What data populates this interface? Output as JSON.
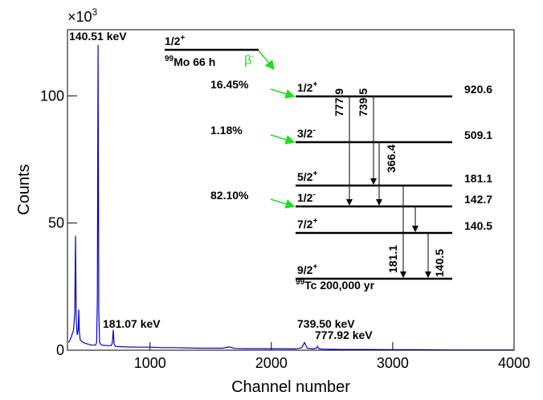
{
  "chart_data": {
    "type": "line",
    "xlabel": "Channel number",
    "ylabel": "Counts",
    "y_multiplier": {
      "base": "×10",
      "exponent": "3"
    },
    "color": "#0000cc",
    "xlim": [
      320,
      4000
    ],
    "ylim": [
      0,
      126
    ],
    "xticks": [
      1000,
      2000,
      3000,
      4000
    ],
    "yticks": [
      0,
      50,
      100
    ],
    "x": [
      330,
      350,
      370,
      380,
      386,
      392,
      400,
      408,
      413,
      418,
      425,
      450,
      480,
      520,
      550,
      560,
      566,
      572,
      578,
      585,
      600,
      650,
      680,
      690,
      697,
      704,
      715,
      800,
      900,
      1000,
      1100,
      1200,
      1400,
      1600,
      1650,
      1700,
      1800,
      2000,
      2200,
      2250,
      2273,
      2295,
      2340,
      2370,
      2380,
      2390,
      2420,
      2600,
      2800,
      3000,
      3200,
      3500,
      3800,
      4000
    ],
    "values": [
      3,
      5,
      8,
      15,
      45,
      12,
      6,
      8,
      16,
      7,
      4,
      3,
      2.5,
      2,
      2,
      3,
      20,
      120,
      15,
      3,
      2,
      1.8,
      1.8,
      3,
      8,
      2.5,
      1.5,
      1.3,
      1.2,
      1.2,
      1,
      1,
      0.8,
      0.8,
      1.3,
      0.7,
      0.6,
      0.6,
      0.5,
      1,
      3,
      0.8,
      0.5,
      0.8,
      1.5,
      0.6,
      0.4,
      0.3,
      0.3,
      0.2,
      0.2,
      0.1,
      0.1,
      0.1
    ],
    "peak_labels": [
      "140.51 keV",
      "181.07 keV",
      "739.50 keV",
      "777.92 keV"
    ],
    "decay_scheme": {
      "parent": {
        "spin": "1/2",
        "parity": "+",
        "mass": "99",
        "name": "Mo 66 h"
      },
      "decay": {
        "base": "β",
        "sign": "-"
      },
      "branches": [
        "16.45%",
        "1.18%",
        "82.10%"
      ],
      "levels": [
        {
          "spin": "1/2",
          "parity": "+",
          "energy": "920.6"
        },
        {
          "spin": "3/2",
          "parity": "-",
          "energy": "509.1"
        },
        {
          "spin": "5/2",
          "parity": "+",
          "energy": "181.1"
        },
        {
          "spin": "1/2",
          "parity": "-",
          "energy": "142.7"
        },
        {
          "spin": "7/2",
          "parity": "+",
          "energy": "140.5"
        },
        {
          "spin": "9/2",
          "parity": "+"
        }
      ],
      "transitions": [
        "777.9",
        "739.5",
        "366.4",
        "181.1",
        "140.5"
      ],
      "daughter": {
        "mass": "99",
        "name": "Tc 200,000 yr"
      }
    }
  }
}
